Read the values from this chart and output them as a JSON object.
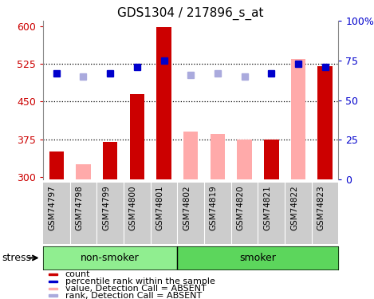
{
  "title": "GDS1304 / 217896_s_at",
  "samples": [
    "GSM74797",
    "GSM74798",
    "GSM74799",
    "GSM74800",
    "GSM74801",
    "GSM74802",
    "GSM74819",
    "GSM74820",
    "GSM74821",
    "GSM74822",
    "GSM74823"
  ],
  "bar_values": [
    350,
    325,
    370,
    465,
    597,
    390,
    385,
    375,
    375,
    535,
    520
  ],
  "bar_absent": [
    false,
    true,
    false,
    false,
    false,
    true,
    true,
    true,
    false,
    true,
    false
  ],
  "rank_values": [
    67,
    65,
    67,
    71,
    75,
    66,
    67,
    65,
    67,
    73,
    71
  ],
  "rank_absent": [
    false,
    true,
    false,
    false,
    false,
    true,
    true,
    true,
    false,
    false,
    false
  ],
  "ylim_left": [
    295,
    610
  ],
  "ylim_right": [
    0,
    100
  ],
  "yticks_left": [
    300,
    375,
    450,
    525,
    600
  ],
  "yticks_right": [
    0,
    25,
    50,
    75,
    100
  ],
  "ytick_labels_right": [
    "0",
    "25",
    "50",
    "75",
    "100%"
  ],
  "color_bar_present": "#cc0000",
  "color_bar_absent": "#ffaaaa",
  "color_rank_present": "#0000cc",
  "color_rank_absent": "#aaaadd",
  "bg_color": "#ffffff",
  "label_color_left": "#cc0000",
  "label_color_right": "#0000cc",
  "ns_group_color": "#90ee90",
  "s_group_color": "#5cd65c",
  "non_smoker_count": 5,
  "smoker_count": 6,
  "stress_label": "stress",
  "grid_yticks": [
    375,
    450,
    525
  ],
  "legend_items": [
    {
      "color": "#cc0000",
      "label": "count"
    },
    {
      "color": "#0000cc",
      "label": "percentile rank within the sample"
    },
    {
      "color": "#ffaaaa",
      "label": "value, Detection Call = ABSENT"
    },
    {
      "color": "#aaaadd",
      "label": "rank, Detection Call = ABSENT"
    }
  ]
}
